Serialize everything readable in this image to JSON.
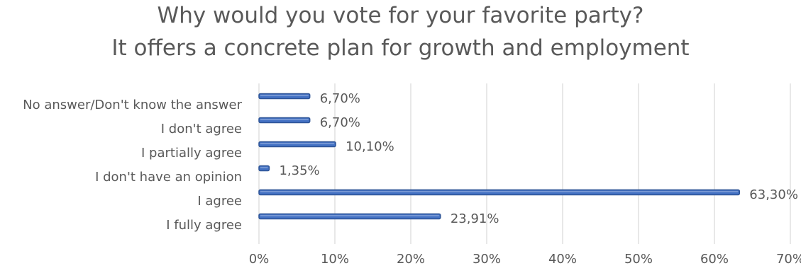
{
  "chart_data": {
    "type": "bar",
    "orientation": "horizontal",
    "title": [
      "Why would you vote for your favorite party?",
      "It offers a concrete plan for growth and employment"
    ],
    "categories": [
      "No answer/Don't know the answer",
      "I don't agree",
      "I partially agree",
      "I don't have an opinion",
      "I agree",
      "I fully agree"
    ],
    "values": [
      6.7,
      6.7,
      10.1,
      1.35,
      63.3,
      23.91
    ],
    "data_labels": [
      "6,70%",
      "6,70%",
      "10,10%",
      "1,35%",
      "63,30%",
      "23,91%"
    ],
    "x_ticks": [
      "0%",
      "10%",
      "20%",
      "30%",
      "40%",
      "50%",
      "60%",
      "70%"
    ],
    "xlim": [
      0,
      70
    ],
    "grid": true,
    "legend": "none",
    "colors": {
      "bar_fill": "#4472c4",
      "bar_edge": "#2f5597",
      "bar_highlight": "#8faadc",
      "grid": "#d9d9d9",
      "text": "#595959"
    }
  }
}
